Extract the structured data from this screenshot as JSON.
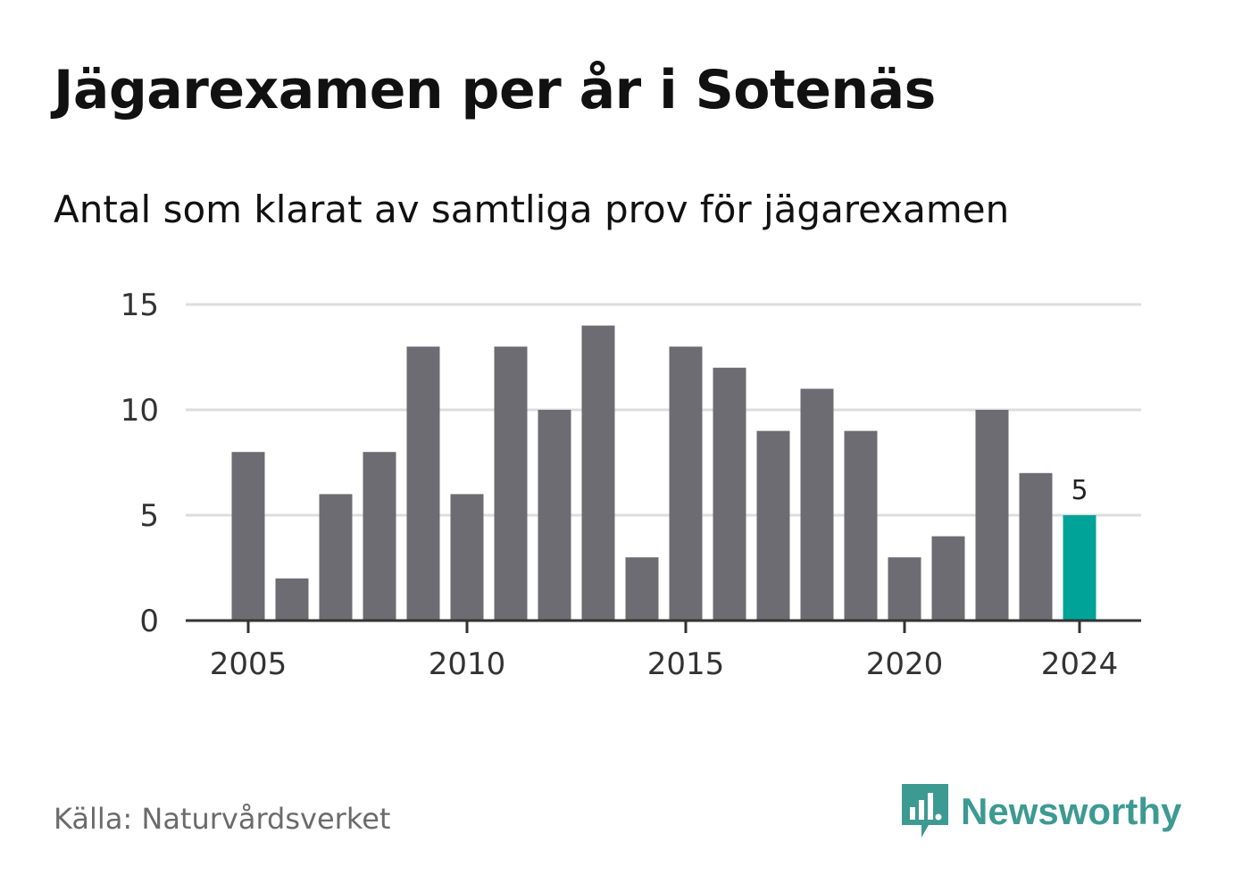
{
  "title": "Jägarexamen per år i Sotenäs",
  "subtitle": "Antal som klarat av samtliga prov för jägarexamen",
  "source": "Källa: Naturvårdsverket",
  "brand": {
    "name": "Newsworthy",
    "icon": "newsworthy-logo-icon",
    "color": "#3d9a92"
  },
  "colors": {
    "bar": "#6d6c72",
    "highlight": "#00a398",
    "grid": "#dddddd",
    "axis": "#333333"
  },
  "chart_data": {
    "type": "bar",
    "categories": [
      "2005",
      "2006",
      "2007",
      "2008",
      "2009",
      "2010",
      "2011",
      "2012",
      "2013",
      "2014",
      "2015",
      "2016",
      "2017",
      "2018",
      "2019",
      "2020",
      "2021",
      "2022",
      "2023",
      "2024"
    ],
    "values": [
      8,
      2,
      6,
      8,
      13,
      6,
      13,
      10,
      14,
      3,
      13,
      12,
      9,
      11,
      9,
      3,
      4,
      10,
      7,
      5
    ],
    "highlight_index": 19,
    "data_labels": [
      {
        "index": 19,
        "text": "5"
      }
    ],
    "x_ticks": [
      "2005",
      "2010",
      "2015",
      "2020",
      "2024"
    ],
    "y_ticks": [
      0,
      5,
      10,
      15
    ],
    "ylim": [
      0,
      15
    ],
    "grid": true,
    "xlabel": "",
    "ylabel": ""
  }
}
